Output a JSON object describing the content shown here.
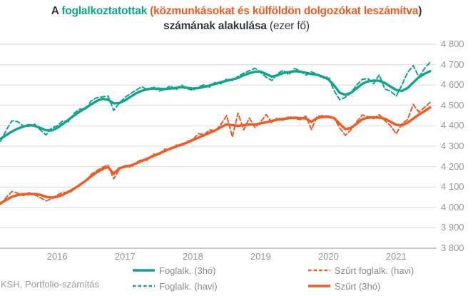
{
  "title": {
    "full_text": "A foglalkoztatottak (közmunkásokat és külföldön dolgozókat leszámítva) számának alakulása (ezer fő)",
    "segments": [
      {
        "text": "A ",
        "color": "title_dark",
        "bold": true
      },
      {
        "text": "foglalkoztatottak ",
        "color": "teal",
        "bold": true
      },
      {
        "text": "(közmunkásokat és külföldön dolgozókat leszámítva",
        "color": "orange",
        "bold": true
      },
      {
        "text": ") számának alakulása ",
        "color": "title_dark",
        "bold": true
      },
      {
        "text": "(ezer fő)",
        "color": "title_dark",
        "bold": false
      }
    ]
  },
  "source_note": "KSH, Portfolio-számítás",
  "colors": {
    "teal": "#0FA58C",
    "orange": "#F15A23",
    "title_dark": "#333940",
    "axis_text": "#969696",
    "legend_text": "#8A8A8A",
    "gridline": "#DBDBDB",
    "axis_line": "#8F8F8F",
    "background": "#FFFFFF"
  },
  "legend": {
    "position": "bottom",
    "items": [
      {
        "id": "foglalk-3ho",
        "label": "Foglalk. (3hó)",
        "color": "teal",
        "style": "solid"
      },
      {
        "id": "foglalk-havi",
        "label": "Foglalk. (havi)",
        "color": "teal",
        "style": "dashed"
      },
      {
        "id": "szurt-foglalk-havi",
        "label": "Szűrt foglalk. (havi)",
        "color": "orange",
        "style": "dashed"
      },
      {
        "id": "szurt-3ho",
        "label": "Szűrt (3hó)",
        "color": "orange",
        "style": "solid"
      }
    ]
  },
  "chart_data": {
    "type": "line",
    "title": "A foglalkoztatottak (közmunkásokat és külföldön dolgozókat leszámítva) számának alakulása (ezer fő)",
    "xlabel": "",
    "ylabel": "ezer fő",
    "ylim": [
      3800,
      4800
    ],
    "grid": true,
    "legend_position": "bottom",
    "y_ticks": [
      4800,
      4700,
      4600,
      4500,
      4400,
      4300,
      4200,
      4100,
      4000,
      3900,
      3800
    ],
    "y_tick_labels": [
      "4 800",
      "4 700",
      "4 600",
      "4 500",
      "4 400",
      "4 300",
      "4 200",
      "4 100",
      "4 000",
      "3 900",
      "3 800"
    ],
    "x_tick_labels": [
      "2016",
      "2017",
      "2018",
      "2019",
      "2020",
      "2021"
    ],
    "x_tick_indices": [
      10,
      22,
      34,
      46,
      58,
      70
    ],
    "x_start": "2015-03",
    "x_step_months": 1,
    "months": [
      "2015-03",
      "2015-04",
      "2015-05",
      "2015-06",
      "2015-07",
      "2015-08",
      "2015-09",
      "2015-10",
      "2015-11",
      "2015-12",
      "2016-01",
      "2016-02",
      "2016-03",
      "2016-04",
      "2016-05",
      "2016-06",
      "2016-07",
      "2016-08",
      "2016-09",
      "2016-10",
      "2016-11",
      "2016-12",
      "2017-01",
      "2017-02",
      "2017-03",
      "2017-04",
      "2017-05",
      "2017-06",
      "2017-07",
      "2017-08",
      "2017-09",
      "2017-10",
      "2017-11",
      "2017-12",
      "2018-01",
      "2018-02",
      "2018-03",
      "2018-04",
      "2018-05",
      "2018-06",
      "2018-07",
      "2018-08",
      "2018-09",
      "2018-10",
      "2018-11",
      "2018-12",
      "2019-01",
      "2019-02",
      "2019-03",
      "2019-04",
      "2019-05",
      "2019-06",
      "2019-07",
      "2019-08",
      "2019-09",
      "2019-10",
      "2019-11",
      "2019-12",
      "2020-01",
      "2020-02",
      "2020-03",
      "2020-04",
      "2020-05",
      "2020-06",
      "2020-07",
      "2020-08",
      "2020-09",
      "2020-10",
      "2020-11",
      "2020-12",
      "2021-01",
      "2021-02",
      "2021-03",
      "2021-04",
      "2021-05",
      "2021-06",
      "2021-07"
    ],
    "series": [
      {
        "id": "foglalk-3ho",
        "name": "Foglalk. (3hó)",
        "color": "teal",
        "style": "solid",
        "values": [
          4337,
          4355,
          4372,
          4386,
          4396,
          4404,
          4400,
          4390,
          4378,
          4377,
          4390,
          4409,
          4430,
          4451,
          4470,
          4487,
          4505,
          4522,
          4532,
          4528,
          4510,
          4512,
          4525,
          4543,
          4560,
          4572,
          4580,
          4583,
          4582,
          4580,
          4583,
          4586,
          4589,
          4586,
          4583,
          4585,
          4591,
          4598,
          4606,
          4614,
          4621,
          4627,
          4635,
          4648,
          4658,
          4665,
          4666,
          4654,
          4641,
          4648,
          4659,
          4663,
          4668,
          4665,
          4660,
          4654,
          4650,
          4641,
          4628,
          4598,
          4562,
          4552,
          4562,
          4584,
          4606,
          4618,
          4622,
          4621,
          4610,
          4592,
          4576,
          4571,
          4585,
          4612,
          4638,
          4655,
          4668
        ]
      },
      {
        "id": "foglalk-havi",
        "name": "Foglalk. (havi)",
        "color": "teal",
        "style": "dashed",
        "values": [
          4325,
          4380,
          4425,
          4420,
          4400,
          4398,
          4408,
          4380,
          4355,
          4390,
          4400,
          4425,
          4420,
          4462,
          4482,
          4480,
          4522,
          4538,
          4542,
          4546,
          4475,
          4512,
          4540,
          4558,
          4576,
          4592,
          4574,
          4592,
          4570,
          4578,
          4596,
          4576,
          4600,
          4582,
          4574,
          4590,
          4602,
          4590,
          4615,
          4606,
          4630,
          4622,
          4642,
          4658,
          4670,
          4682,
          4662,
          4638,
          4622,
          4656,
          4672,
          4650,
          4681,
          4670,
          4648,
          4665,
          4652,
          4634,
          4640,
          4572,
          4528,
          4540,
          4563,
          4600,
          4628,
          4631,
          4606,
          4650,
          4580,
          4570,
          4545,
          4600,
          4660,
          4695,
          4640,
          4680,
          4712
        ]
      },
      {
        "id": "szurt-3ho",
        "name": "Szűrt (3hó)",
        "color": "orange",
        "style": "solid",
        "values": [
          4021,
          4037,
          4052,
          4061,
          4065,
          4065,
          4066,
          4062,
          4052,
          4048,
          4052,
          4062,
          4077,
          4092,
          4110,
          4130,
          4152,
          4172,
          4188,
          4198,
          4165,
          4192,
          4200,
          4205,
          4216,
          4228,
          4240,
          4252,
          4264,
          4276,
          4288,
          4298,
          4308,
          4318,
          4330,
          4342,
          4354,
          4366,
          4378,
          4394,
          4407,
          4403,
          4400,
          4403,
          4407,
          4406,
          4412,
          4418,
          4424,
          4430,
          4434,
          4437,
          4440,
          4438,
          4436,
          4420,
          4438,
          4443,
          4444,
          4438,
          4410,
          4384,
          4390,
          4410,
          4432,
          4440,
          4442,
          4440,
          4435,
          4420,
          4405,
          4402,
          4415,
          4435,
          4455,
          4472,
          4490
        ]
      },
      {
        "id": "szurt-foglalk-havi",
        "name": "Szűrt foglalk. (havi)",
        "color": "orange",
        "style": "dashed",
        "values": [
          4015,
          4050,
          4078,
          4070,
          4058,
          4072,
          4062,
          4048,
          4032,
          4042,
          4060,
          4075,
          4070,
          4088,
          4115,
          4128,
          4162,
          4180,
          4196,
          4208,
          4140,
          4186,
          4208,
          4196,
          4220,
          4236,
          4230,
          4262,
          4256,
          4286,
          4282,
          4306,
          4300,
          4324,
          4332,
          4362,
          4356,
          4380,
          4376,
          4408,
          4450,
          4345,
          4462,
          4380,
          4438,
          4392,
          4420,
          4455,
          4415,
          4440,
          4425,
          4446,
          4437,
          4430,
          4448,
          4382,
          4446,
          4450,
          4448,
          4438,
          4390,
          4353,
          4380,
          4420,
          4453,
          4445,
          4435,
          4455,
          4425,
          4400,
          4360,
          4410,
          4430,
          4505,
          4468,
          4490,
          4515
        ]
      }
    ]
  }
}
